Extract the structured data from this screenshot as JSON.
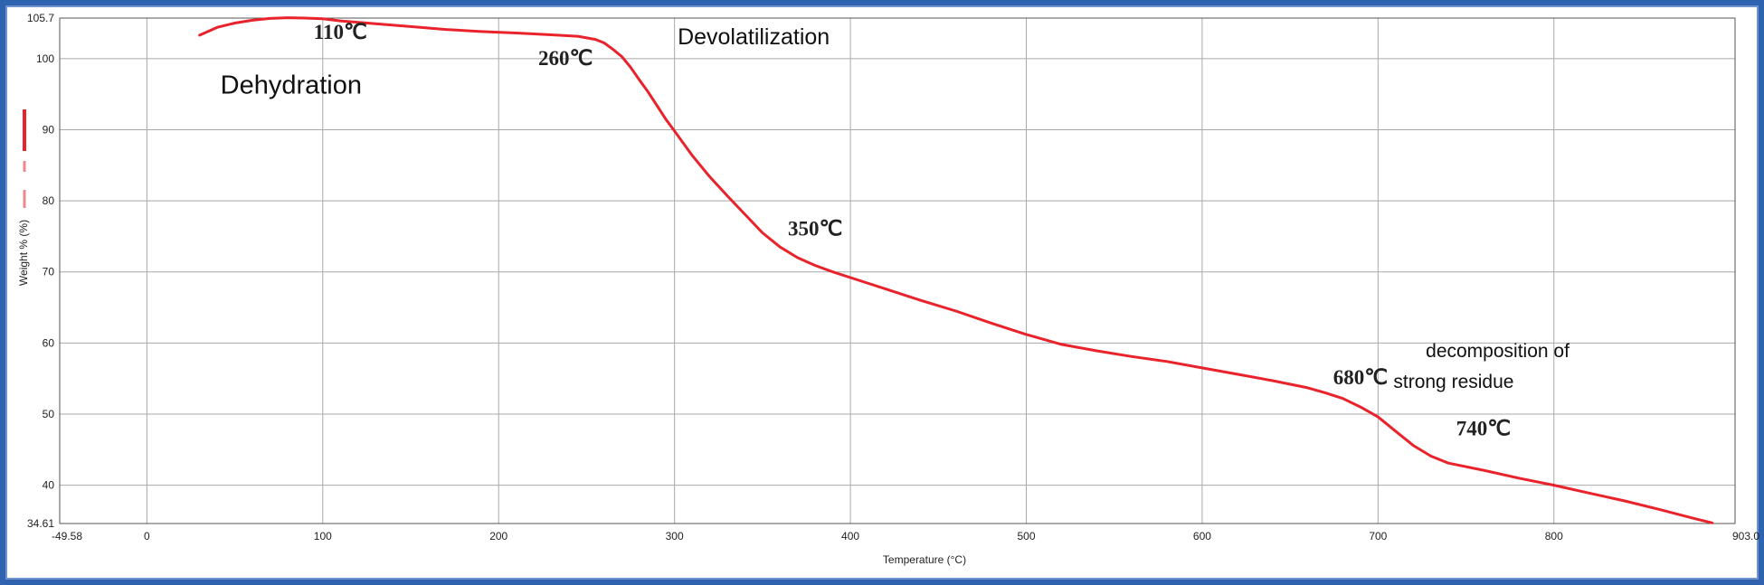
{
  "chart_data": {
    "type": "line",
    "xlabel": "Temperature (°C)",
    "ylabel": "Weight % (%)",
    "xlim": [
      -49.58,
      903
    ],
    "ylim": [
      34.61,
      105.7
    ],
    "x_edge_labels": [
      "-49.58",
      "903.0"
    ],
    "y_edge_labels": [
      "34.61",
      "105.7"
    ],
    "x_ticks": [
      0,
      100,
      200,
      300,
      400,
      500,
      600,
      700,
      800
    ],
    "y_ticks": [
      40,
      50,
      60,
      70,
      80,
      90,
      100
    ],
    "grid": true,
    "series_color": "#e8232b",
    "series": [
      {
        "x": [
          30,
          40,
          50,
          60,
          70,
          80,
          90,
          100,
          110,
          130,
          150,
          170,
          190,
          210,
          230,
          245,
          255,
          260,
          265,
          270,
          275,
          280,
          285,
          290,
          295,
          300,
          310,
          320,
          330,
          340,
          350,
          360,
          370,
          380,
          390,
          400,
          420,
          440,
          460,
          480,
          500,
          520,
          540,
          560,
          580,
          600,
          620,
          640,
          660,
          670,
          680,
          690,
          700,
          710,
          720,
          730,
          740,
          760,
          780,
          800,
          820,
          840,
          860,
          880,
          890
        ],
        "y": [
          103.3,
          104.4,
          105.0,
          105.4,
          105.65,
          105.75,
          105.7,
          105.6,
          105.3,
          104.9,
          104.5,
          104.1,
          103.8,
          103.6,
          103.35,
          103.15,
          102.7,
          102.2,
          101.3,
          100.3,
          98.8,
          97.0,
          95.3,
          93.4,
          91.5,
          89.8,
          86.4,
          83.4,
          80.7,
          78.1,
          75.5,
          73.5,
          72.0,
          70.9,
          70.0,
          69.2,
          67.6,
          66.0,
          64.5,
          62.8,
          61.2,
          59.8,
          58.9,
          58.1,
          57.4,
          56.5,
          55.6,
          54.7,
          53.7,
          53.0,
          52.2,
          51.0,
          49.6,
          47.6,
          45.6,
          44.1,
          43.1,
          42.1,
          41.0,
          40.0,
          38.9,
          37.8,
          36.6,
          35.3,
          34.7
        ]
      }
    ],
    "annotations": [
      {
        "text": "110℃",
        "x": 110,
        "y": 102.8
      },
      {
        "text": "Dehydration",
        "x": 82,
        "y": 95.1
      },
      {
        "text": "260℃",
        "x": 238,
        "y": 99.1
      },
      {
        "text": "Devolatilization",
        "x": 345,
        "y": 102.0
      },
      {
        "text": "350℃",
        "x": 380,
        "y": 75.1
      },
      {
        "text": "680℃",
        "x": 690,
        "y": 54.2
      },
      {
        "text": "740℃",
        "x": 760,
        "y": 47.0
      },
      {
        "text": "decomposition of",
        "x": 768,
        "y": 58.0
      },
      {
        "text": "strong residue",
        "x": 743,
        "y": 53.7
      }
    ]
  }
}
